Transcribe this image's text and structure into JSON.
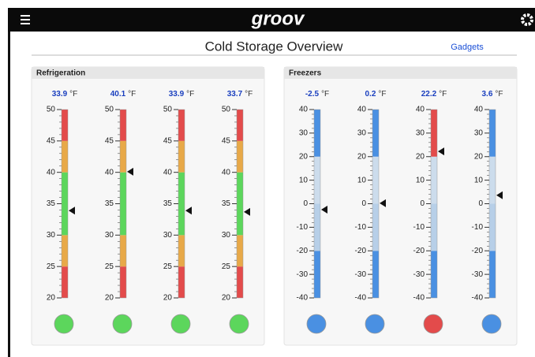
{
  "header": {
    "logo": "groov"
  },
  "title": "Cold Storage Overview",
  "link": "Gadgets",
  "panels": [
    {
      "title": "Refrigeration",
      "unit": "°F",
      "range": [
        20,
        50
      ],
      "ticks": [
        20,
        25,
        30,
        35,
        40,
        45,
        50
      ],
      "gauges": [
        {
          "value": 33.9,
          "status_color": "#5cd65c",
          "bands": [
            {
              "from": 20,
              "to": 25,
              "color": "#e34b4b"
            },
            {
              "from": 25,
              "to": 30,
              "color": "#e8a948"
            },
            {
              "from": 30,
              "to": 40,
              "color": "#5cd65c"
            },
            {
              "from": 40,
              "to": 45,
              "color": "#e8a948"
            },
            {
              "from": 45,
              "to": 50,
              "color": "#e34b4b"
            }
          ]
        },
        {
          "value": 40.1,
          "status_color": "#5cd65c",
          "bands": [
            {
              "from": 20,
              "to": 25,
              "color": "#e34b4b"
            },
            {
              "from": 25,
              "to": 30,
              "color": "#e8a948"
            },
            {
              "from": 30,
              "to": 40,
              "color": "#5cd65c"
            },
            {
              "from": 40,
              "to": 45,
              "color": "#e8a948"
            },
            {
              "from": 45,
              "to": 50,
              "color": "#e34b4b"
            }
          ]
        },
        {
          "value": 33.9,
          "status_color": "#5cd65c",
          "bands": [
            {
              "from": 20,
              "to": 25,
              "color": "#e34b4b"
            },
            {
              "from": 25,
              "to": 30,
              "color": "#e8a948"
            },
            {
              "from": 30,
              "to": 40,
              "color": "#5cd65c"
            },
            {
              "from": 40,
              "to": 45,
              "color": "#e8a948"
            },
            {
              "from": 45,
              "to": 50,
              "color": "#e34b4b"
            }
          ]
        },
        {
          "value": 33.7,
          "status_color": "#5cd65c",
          "bands": [
            {
              "from": 20,
              "to": 25,
              "color": "#e34b4b"
            },
            {
              "from": 25,
              "to": 30,
              "color": "#e8a948"
            },
            {
              "from": 30,
              "to": 40,
              "color": "#5cd65c"
            },
            {
              "from": 40,
              "to": 45,
              "color": "#e8a948"
            },
            {
              "from": 45,
              "to": 50,
              "color": "#e34b4b"
            }
          ]
        }
      ]
    },
    {
      "title": "Freezers",
      "unit": "°F",
      "range": [
        -40,
        40
      ],
      "ticks": [
        -40,
        -30,
        -20,
        -10,
        0,
        10,
        20,
        30,
        40
      ],
      "gauges": [
        {
          "value": -2.5,
          "status_color": "#4a90e2",
          "bands": [
            {
              "from": -40,
              "to": -20,
              "color": "#4a90e2"
            },
            {
              "from": -20,
              "to": 0,
              "color": "#b7cfe8"
            },
            {
              "from": 0,
              "to": 20,
              "color": "#ccdcec"
            },
            {
              "from": 20,
              "to": 40,
              "color": "#4a90e2"
            }
          ]
        },
        {
          "value": 0.2,
          "status_color": "#4a90e2",
          "bands": [
            {
              "from": -40,
              "to": -20,
              "color": "#4a90e2"
            },
            {
              "from": -20,
              "to": 0,
              "color": "#b7cfe8"
            },
            {
              "from": 0,
              "to": 20,
              "color": "#ccdcec"
            },
            {
              "from": 20,
              "to": 40,
              "color": "#4a90e2"
            }
          ]
        },
        {
          "value": 22.2,
          "status_color": "#e34b4b",
          "bands": [
            {
              "from": -40,
              "to": -20,
              "color": "#4a90e2"
            },
            {
              "from": -20,
              "to": 0,
              "color": "#b7cfe8"
            },
            {
              "from": 0,
              "to": 20,
              "color": "#ccdcec"
            },
            {
              "from": 20,
              "to": 40,
              "color": "#e34b4b"
            }
          ]
        },
        {
          "value": 3.6,
          "status_color": "#4a90e2",
          "bands": [
            {
              "from": -40,
              "to": -20,
              "color": "#4a90e2"
            },
            {
              "from": -20,
              "to": 0,
              "color": "#b7cfe8"
            },
            {
              "from": 0,
              "to": 20,
              "color": "#ccdcec"
            },
            {
              "from": 20,
              "to": 40,
              "color": "#4a90e2"
            }
          ]
        }
      ]
    }
  ]
}
